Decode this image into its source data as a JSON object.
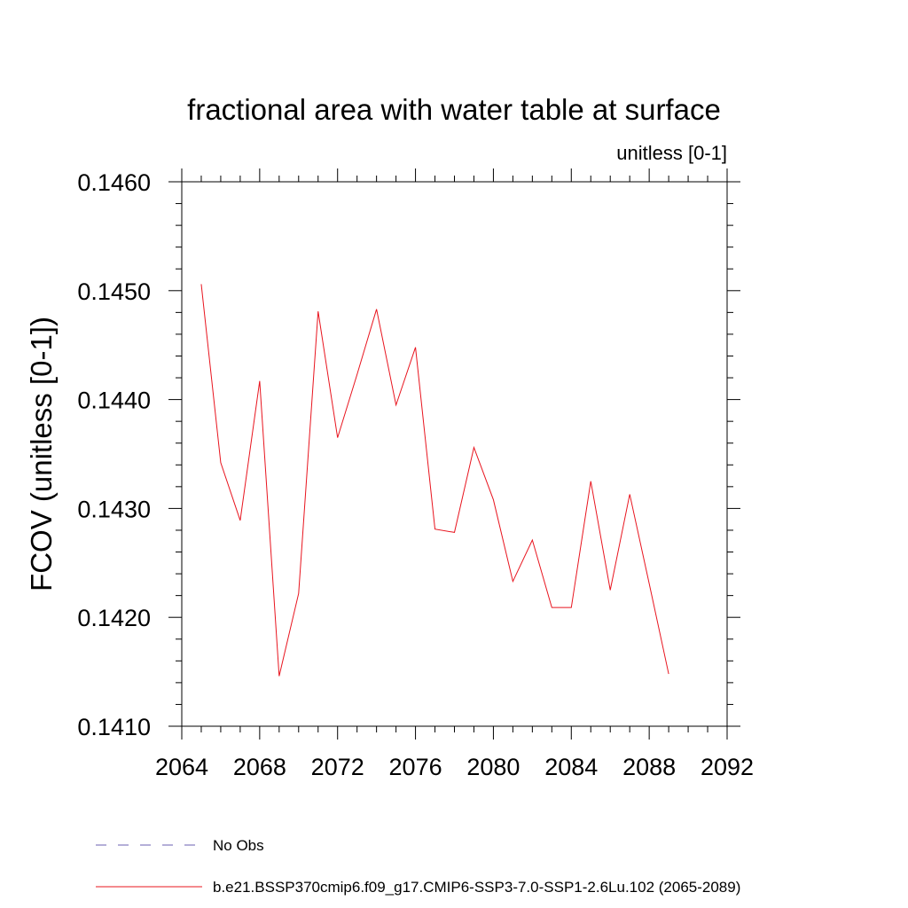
{
  "chart_data": {
    "type": "line",
    "title": "fractional area with water table at surface",
    "units_label": "unitless [0-1]",
    "ylabel": "FCOV  (unitless [0-1])",
    "xlabel": "",
    "xlim": [
      2064,
      2092
    ],
    "ylim": [
      0.141,
      0.146
    ],
    "x_major_ticks": [
      2064,
      2068,
      2072,
      2076,
      2080,
      2084,
      2088,
      2092
    ],
    "x_tick_labels": [
      "2064",
      "2068",
      "2072",
      "2076",
      "2080",
      "2084",
      "2088",
      "2092"
    ],
    "y_major_ticks": [
      0.141,
      0.142,
      0.143,
      0.144,
      0.145,
      0.146
    ],
    "y_tick_labels": [
      "0.1410",
      "0.1420",
      "0.1430",
      "0.1440",
      "0.1450",
      "0.1460"
    ],
    "grid": false,
    "legend_position": "bottom",
    "series": [
      {
        "name": "b.e21.BSSP370cmip6.f09_g17.CMIP6-SSP3-7.0-SSP1-2.6Lu.102 (2065-2089)",
        "color": "#e8141e",
        "x": [
          2065,
          2066,
          2067,
          2068,
          2069,
          2070,
          2071,
          2072,
          2073,
          2074,
          2075,
          2076,
          2077,
          2078,
          2079,
          2080,
          2081,
          2082,
          2083,
          2084,
          2085,
          2086,
          2087,
          2088,
          2089
        ],
        "y": [
          0.14506,
          0.14342,
          0.14289,
          0.14417,
          0.14146,
          0.14222,
          0.14481,
          0.14365,
          0.14423,
          0.14483,
          0.14395,
          0.14448,
          0.14281,
          0.14278,
          0.14356,
          0.14308,
          0.14233,
          0.14271,
          0.14209,
          0.14209,
          0.14325,
          0.14225,
          0.14313,
          0.14231,
          0.14148
        ]
      }
    ],
    "legend": [
      {
        "label": "No Obs",
        "style": "dashed",
        "color": "#6b5fb0"
      },
      {
        "label": "b.e21.BSSP370cmip6.f09_g17.CMIP6-SSP3-7.0-SSP1-2.6Lu.102 (2065-2089)",
        "style": "solid",
        "color": "#e8141e"
      }
    ]
  }
}
